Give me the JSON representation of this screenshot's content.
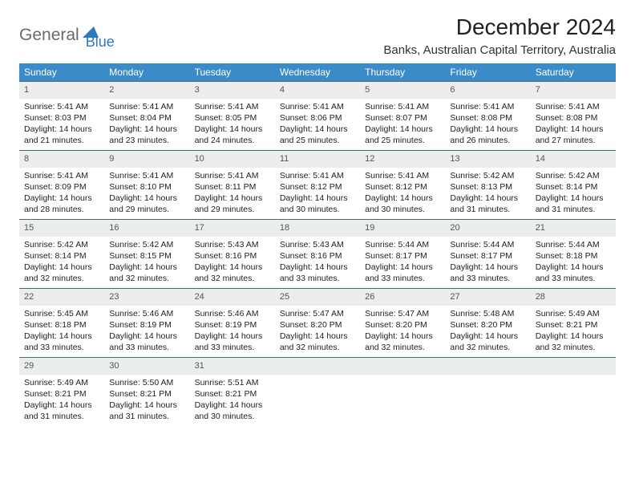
{
  "logo": {
    "word1": "General",
    "word2": "Blue"
  },
  "title": "December 2024",
  "location": "Banks, Australian Capital Territory, Australia",
  "colors": {
    "header_bg": "#3b8bc9",
    "header_text": "#ffffff",
    "daynum_bg": "#eceded",
    "daynum_border": "#4a6a8a",
    "logo_gray": "#6a6a6a",
    "logo_blue": "#2d7bbd"
  },
  "weekdays": [
    "Sunday",
    "Monday",
    "Tuesday",
    "Wednesday",
    "Thursday",
    "Friday",
    "Saturday"
  ],
  "weeks": [
    [
      {
        "n": "1",
        "l1": "Sunrise: 5:41 AM",
        "l2": "Sunset: 8:03 PM",
        "l3": "Daylight: 14 hours",
        "l4": "and 21 minutes."
      },
      {
        "n": "2",
        "l1": "Sunrise: 5:41 AM",
        "l2": "Sunset: 8:04 PM",
        "l3": "Daylight: 14 hours",
        "l4": "and 23 minutes."
      },
      {
        "n": "3",
        "l1": "Sunrise: 5:41 AM",
        "l2": "Sunset: 8:05 PM",
        "l3": "Daylight: 14 hours",
        "l4": "and 24 minutes."
      },
      {
        "n": "4",
        "l1": "Sunrise: 5:41 AM",
        "l2": "Sunset: 8:06 PM",
        "l3": "Daylight: 14 hours",
        "l4": "and 25 minutes."
      },
      {
        "n": "5",
        "l1": "Sunrise: 5:41 AM",
        "l2": "Sunset: 8:07 PM",
        "l3": "Daylight: 14 hours",
        "l4": "and 25 minutes."
      },
      {
        "n": "6",
        "l1": "Sunrise: 5:41 AM",
        "l2": "Sunset: 8:08 PM",
        "l3": "Daylight: 14 hours",
        "l4": "and 26 minutes."
      },
      {
        "n": "7",
        "l1": "Sunrise: 5:41 AM",
        "l2": "Sunset: 8:08 PM",
        "l3": "Daylight: 14 hours",
        "l4": "and 27 minutes."
      }
    ],
    [
      {
        "n": "8",
        "l1": "Sunrise: 5:41 AM",
        "l2": "Sunset: 8:09 PM",
        "l3": "Daylight: 14 hours",
        "l4": "and 28 minutes."
      },
      {
        "n": "9",
        "l1": "Sunrise: 5:41 AM",
        "l2": "Sunset: 8:10 PM",
        "l3": "Daylight: 14 hours",
        "l4": "and 29 minutes."
      },
      {
        "n": "10",
        "l1": "Sunrise: 5:41 AM",
        "l2": "Sunset: 8:11 PM",
        "l3": "Daylight: 14 hours",
        "l4": "and 29 minutes."
      },
      {
        "n": "11",
        "l1": "Sunrise: 5:41 AM",
        "l2": "Sunset: 8:12 PM",
        "l3": "Daylight: 14 hours",
        "l4": "and 30 minutes."
      },
      {
        "n": "12",
        "l1": "Sunrise: 5:41 AM",
        "l2": "Sunset: 8:12 PM",
        "l3": "Daylight: 14 hours",
        "l4": "and 30 minutes."
      },
      {
        "n": "13",
        "l1": "Sunrise: 5:42 AM",
        "l2": "Sunset: 8:13 PM",
        "l3": "Daylight: 14 hours",
        "l4": "and 31 minutes."
      },
      {
        "n": "14",
        "l1": "Sunrise: 5:42 AM",
        "l2": "Sunset: 8:14 PM",
        "l3": "Daylight: 14 hours",
        "l4": "and 31 minutes."
      }
    ],
    [
      {
        "n": "15",
        "l1": "Sunrise: 5:42 AM",
        "l2": "Sunset: 8:14 PM",
        "l3": "Daylight: 14 hours",
        "l4": "and 32 minutes."
      },
      {
        "n": "16",
        "l1": "Sunrise: 5:42 AM",
        "l2": "Sunset: 8:15 PM",
        "l3": "Daylight: 14 hours",
        "l4": "and 32 minutes."
      },
      {
        "n": "17",
        "l1": "Sunrise: 5:43 AM",
        "l2": "Sunset: 8:16 PM",
        "l3": "Daylight: 14 hours",
        "l4": "and 32 minutes."
      },
      {
        "n": "18",
        "l1": "Sunrise: 5:43 AM",
        "l2": "Sunset: 8:16 PM",
        "l3": "Daylight: 14 hours",
        "l4": "and 33 minutes."
      },
      {
        "n": "19",
        "l1": "Sunrise: 5:44 AM",
        "l2": "Sunset: 8:17 PM",
        "l3": "Daylight: 14 hours",
        "l4": "and 33 minutes."
      },
      {
        "n": "20",
        "l1": "Sunrise: 5:44 AM",
        "l2": "Sunset: 8:17 PM",
        "l3": "Daylight: 14 hours",
        "l4": "and 33 minutes."
      },
      {
        "n": "21",
        "l1": "Sunrise: 5:44 AM",
        "l2": "Sunset: 8:18 PM",
        "l3": "Daylight: 14 hours",
        "l4": "and 33 minutes."
      }
    ],
    [
      {
        "n": "22",
        "l1": "Sunrise: 5:45 AM",
        "l2": "Sunset: 8:18 PM",
        "l3": "Daylight: 14 hours",
        "l4": "and 33 minutes."
      },
      {
        "n": "23",
        "l1": "Sunrise: 5:46 AM",
        "l2": "Sunset: 8:19 PM",
        "l3": "Daylight: 14 hours",
        "l4": "and 33 minutes."
      },
      {
        "n": "24",
        "l1": "Sunrise: 5:46 AM",
        "l2": "Sunset: 8:19 PM",
        "l3": "Daylight: 14 hours",
        "l4": "and 33 minutes."
      },
      {
        "n": "25",
        "l1": "Sunrise: 5:47 AM",
        "l2": "Sunset: 8:20 PM",
        "l3": "Daylight: 14 hours",
        "l4": "and 32 minutes."
      },
      {
        "n": "26",
        "l1": "Sunrise: 5:47 AM",
        "l2": "Sunset: 8:20 PM",
        "l3": "Daylight: 14 hours",
        "l4": "and 32 minutes."
      },
      {
        "n": "27",
        "l1": "Sunrise: 5:48 AM",
        "l2": "Sunset: 8:20 PM",
        "l3": "Daylight: 14 hours",
        "l4": "and 32 minutes."
      },
      {
        "n": "28",
        "l1": "Sunrise: 5:49 AM",
        "l2": "Sunset: 8:21 PM",
        "l3": "Daylight: 14 hours",
        "l4": "and 32 minutes."
      }
    ],
    [
      {
        "n": "29",
        "l1": "Sunrise: 5:49 AM",
        "l2": "Sunset: 8:21 PM",
        "l3": "Daylight: 14 hours",
        "l4": "and 31 minutes."
      },
      {
        "n": "30",
        "l1": "Sunrise: 5:50 AM",
        "l2": "Sunset: 8:21 PM",
        "l3": "Daylight: 14 hours",
        "l4": "and 31 minutes."
      },
      {
        "n": "31",
        "l1": "Sunrise: 5:51 AM",
        "l2": "Sunset: 8:21 PM",
        "l3": "Daylight: 14 hours",
        "l4": "and 30 minutes."
      },
      {
        "n": "",
        "l1": "",
        "l2": "",
        "l3": "",
        "l4": ""
      },
      {
        "n": "",
        "l1": "",
        "l2": "",
        "l3": "",
        "l4": ""
      },
      {
        "n": "",
        "l1": "",
        "l2": "",
        "l3": "",
        "l4": ""
      },
      {
        "n": "",
        "l1": "",
        "l2": "",
        "l3": "",
        "l4": ""
      }
    ]
  ]
}
